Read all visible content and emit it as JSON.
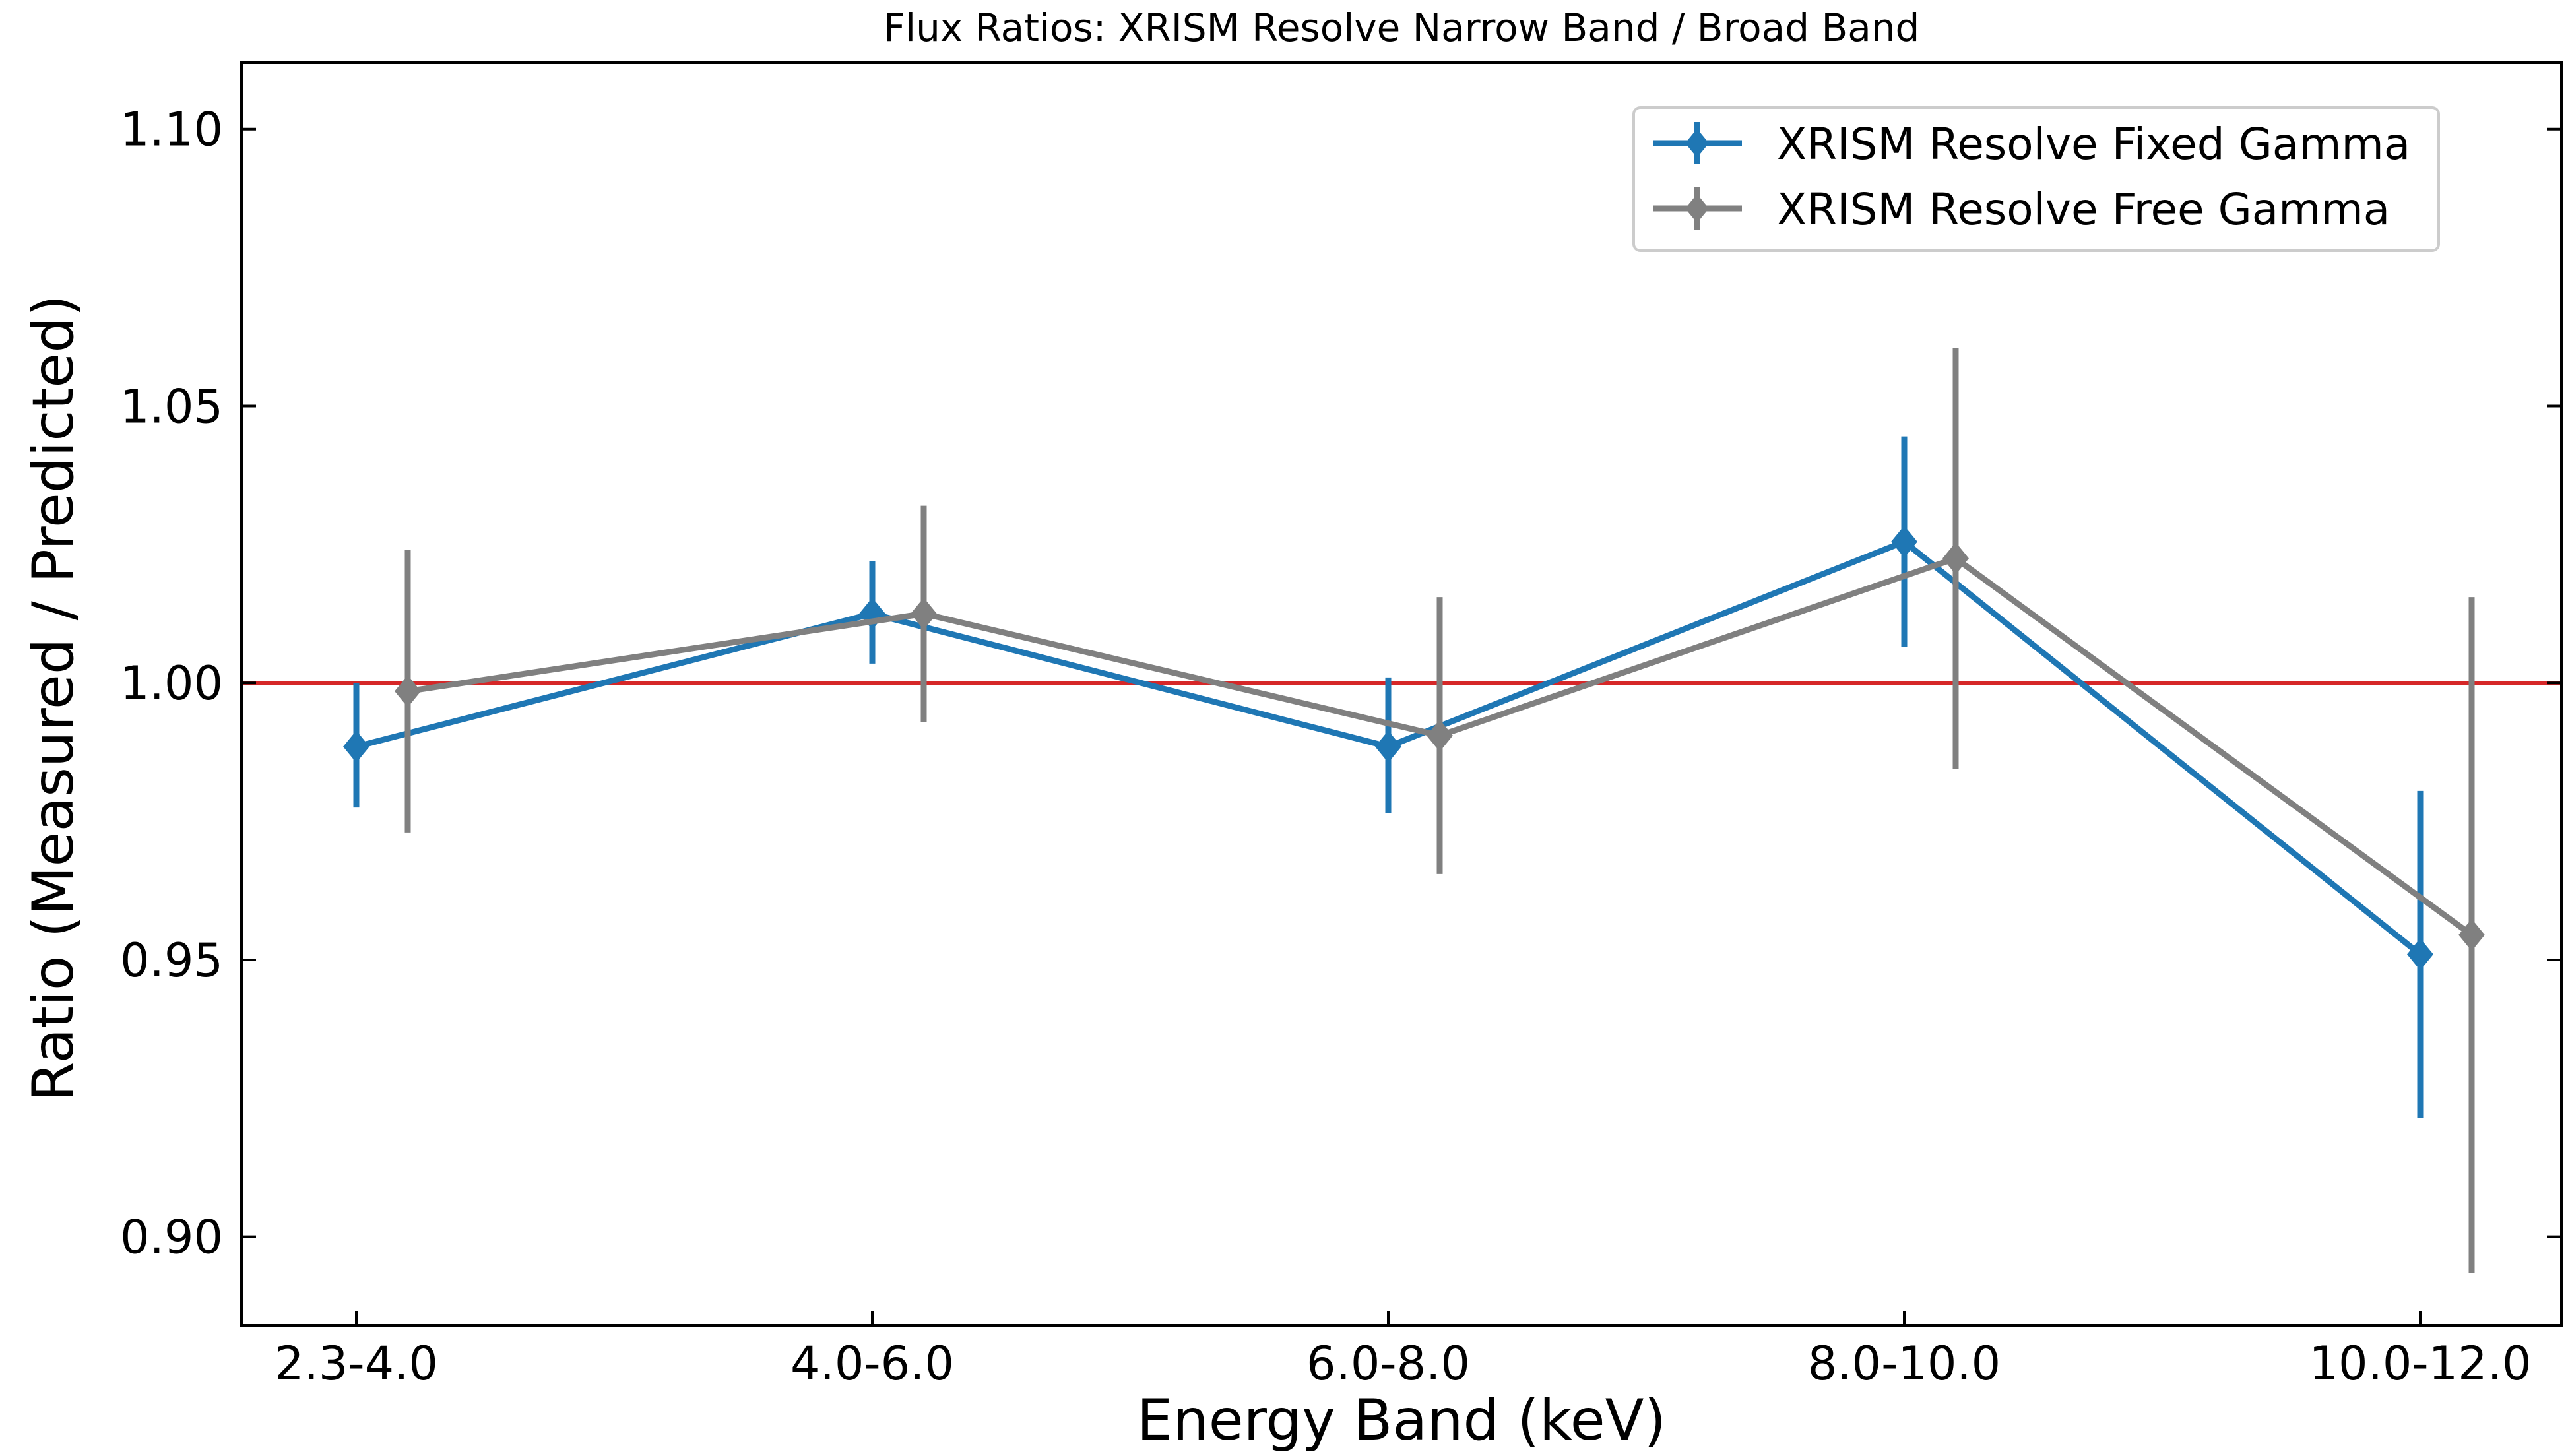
{
  "chart_data": {
    "type": "line",
    "title": "Flux Ratios: XRISM Resolve Narrow Band / Broad Band",
    "xlabel": "Energy Band (keV)",
    "ylabel": "Ratio (Measured / Predicted)",
    "categories": [
      "2.3-4.0",
      "4.0-6.0",
      "6.0-8.0",
      "8.0-10.0",
      "10.0-12.0"
    ],
    "ylim": [
      0.884,
      1.112
    ],
    "yticks": [
      "0.90",
      "0.95",
      "1.00",
      "1.05",
      "1.10"
    ],
    "reference_line": {
      "y": 1.0,
      "color": "#d62728"
    },
    "grid": false,
    "legend_position": "upper right",
    "series": [
      {
        "name": "XRISM Resolve Fixed Gamma",
        "color": "#1f77b4",
        "marker": "diamond",
        "values": [
          0.9885,
          1.0125,
          0.9885,
          1.0255,
          0.951
        ],
        "err_low": [
          0.9775,
          1.0035,
          0.9765,
          1.0065,
          0.9215
        ],
        "err_high": [
          1.0,
          1.022,
          1.001,
          1.0445,
          0.9805
        ]
      },
      {
        "name": "XRISM Resolve Free Gamma",
        "color": "#808080",
        "marker": "diamond",
        "values": [
          0.9985,
          1.0125,
          0.9905,
          1.0225,
          0.9545
        ],
        "err_low": [
          0.973,
          0.993,
          0.9655,
          0.9845,
          0.8935
        ],
        "err_high": [
          1.024,
          1.032,
          1.0155,
          1.0605,
          1.0155
        ]
      }
    ]
  }
}
